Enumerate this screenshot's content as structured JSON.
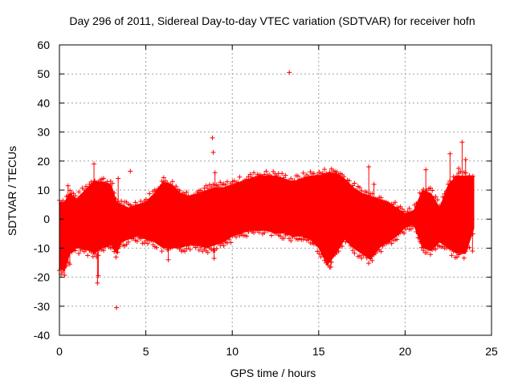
{
  "chart_data": {
    "type": "scatter",
    "title": "Day 296 of 2011, Sidereal Day-to-day VTEC variation (SDTVAR) for receiver hofn",
    "xlabel": "GPS time / hours",
    "ylabel": "SDTVAR / TECUs",
    "xlim": [
      0,
      25
    ],
    "ylim": [
      -40,
      60
    ],
    "xticks": [
      "0",
      "5",
      "10",
      "15",
      "20",
      "25"
    ],
    "yticks": [
      "-40",
      "-30",
      "-20",
      "-10",
      "0",
      "10",
      "20",
      "30",
      "40",
      "50",
      "60"
    ],
    "grid": true,
    "marker": "+",
    "color": "#ff0000",
    "envelope": {
      "x": [
        0.0,
        0.3,
        0.6,
        1.0,
        1.8,
        2.0,
        2.5,
        3.0,
        3.3,
        3.6,
        4.0,
        4.5,
        5.0,
        5.5,
        6.0,
        6.5,
        7.0,
        7.5,
        8.0,
        8.5,
        9.0,
        9.5,
        10.0,
        10.5,
        11.0,
        11.5,
        12.0,
        12.5,
        13.0,
        13.5,
        14.0,
        14.5,
        15.0,
        15.5,
        16.0,
        16.5,
        17.0,
        17.5,
        18.0,
        18.5,
        19.0,
        19.5,
        20.0,
        20.5,
        21.0,
        21.5,
        22.0,
        22.5,
        23.0,
        23.5,
        24.0
      ],
      "upper": [
        6,
        6,
        9,
        7,
        12,
        13,
        13,
        12,
        6,
        5,
        4,
        5,
        6,
        9,
        13,
        12,
        9,
        8,
        9,
        10,
        11,
        11,
        12,
        13,
        14,
        15,
        15,
        15,
        14,
        13,
        14,
        15,
        15,
        16,
        16,
        14,
        11,
        9,
        8,
        7,
        6,
        4,
        2,
        3,
        10,
        9,
        4,
        12,
        15,
        15,
        15
      ],
      "lower": [
        -17,
        -18,
        -12,
        -10,
        -11,
        -12,
        -10,
        -9,
        -12,
        -8,
        -7,
        -6,
        -7,
        -8,
        -10,
        -10,
        -10,
        -9,
        -9,
        -10,
        -9,
        -8,
        -6,
        -5,
        -4,
        -4,
        -4,
        -5,
        -5,
        -6,
        -6,
        -7,
        -10,
        -16,
        -12,
        -7,
        -10,
        -12,
        -14,
        -10,
        -8,
        -6,
        -3,
        -2,
        -10,
        -11,
        -8,
        -10,
        -12,
        -12,
        -3
      ]
    },
    "outliers": [
      {
        "x": 13.3,
        "y": 50.5
      },
      {
        "x": 3.3,
        "y": -30.5
      },
      {
        "x": 23.3,
        "y": 26.5
      },
      {
        "x": 8.85,
        "y": 28.0
      },
      {
        "x": 22.6,
        "y": 22.5
      },
      {
        "x": 8.9,
        "y": 23.0
      },
      {
        "x": 2.0,
        "y": 19.0
      },
      {
        "x": 4.1,
        "y": 16.5
      },
      {
        "x": 2.2,
        "y": -22.0
      },
      {
        "x": 2.25,
        "y": -19.5
      },
      {
        "x": 8.95,
        "y": -13.5
      },
      {
        "x": 17.9,
        "y": 18.0
      },
      {
        "x": 21.2,
        "y": 17.0
      },
      {
        "x": 23.5,
        "y": 20.5
      },
      {
        "x": 0.5,
        "y": 11.5
      },
      {
        "x": 3.4,
        "y": 14.0
      },
      {
        "x": 18.2,
        "y": 12.0
      },
      {
        "x": 15.7,
        "y": -16.5
      },
      {
        "x": 0.1,
        "y": -19.0
      },
      {
        "x": 23.9,
        "y": -11.0
      },
      {
        "x": 9.0,
        "y": 16.0
      },
      {
        "x": 0.6,
        "y": -15.5
      },
      {
        "x": 6.3,
        "y": -14.0
      },
      {
        "x": 23.1,
        "y": 17.5
      }
    ]
  }
}
